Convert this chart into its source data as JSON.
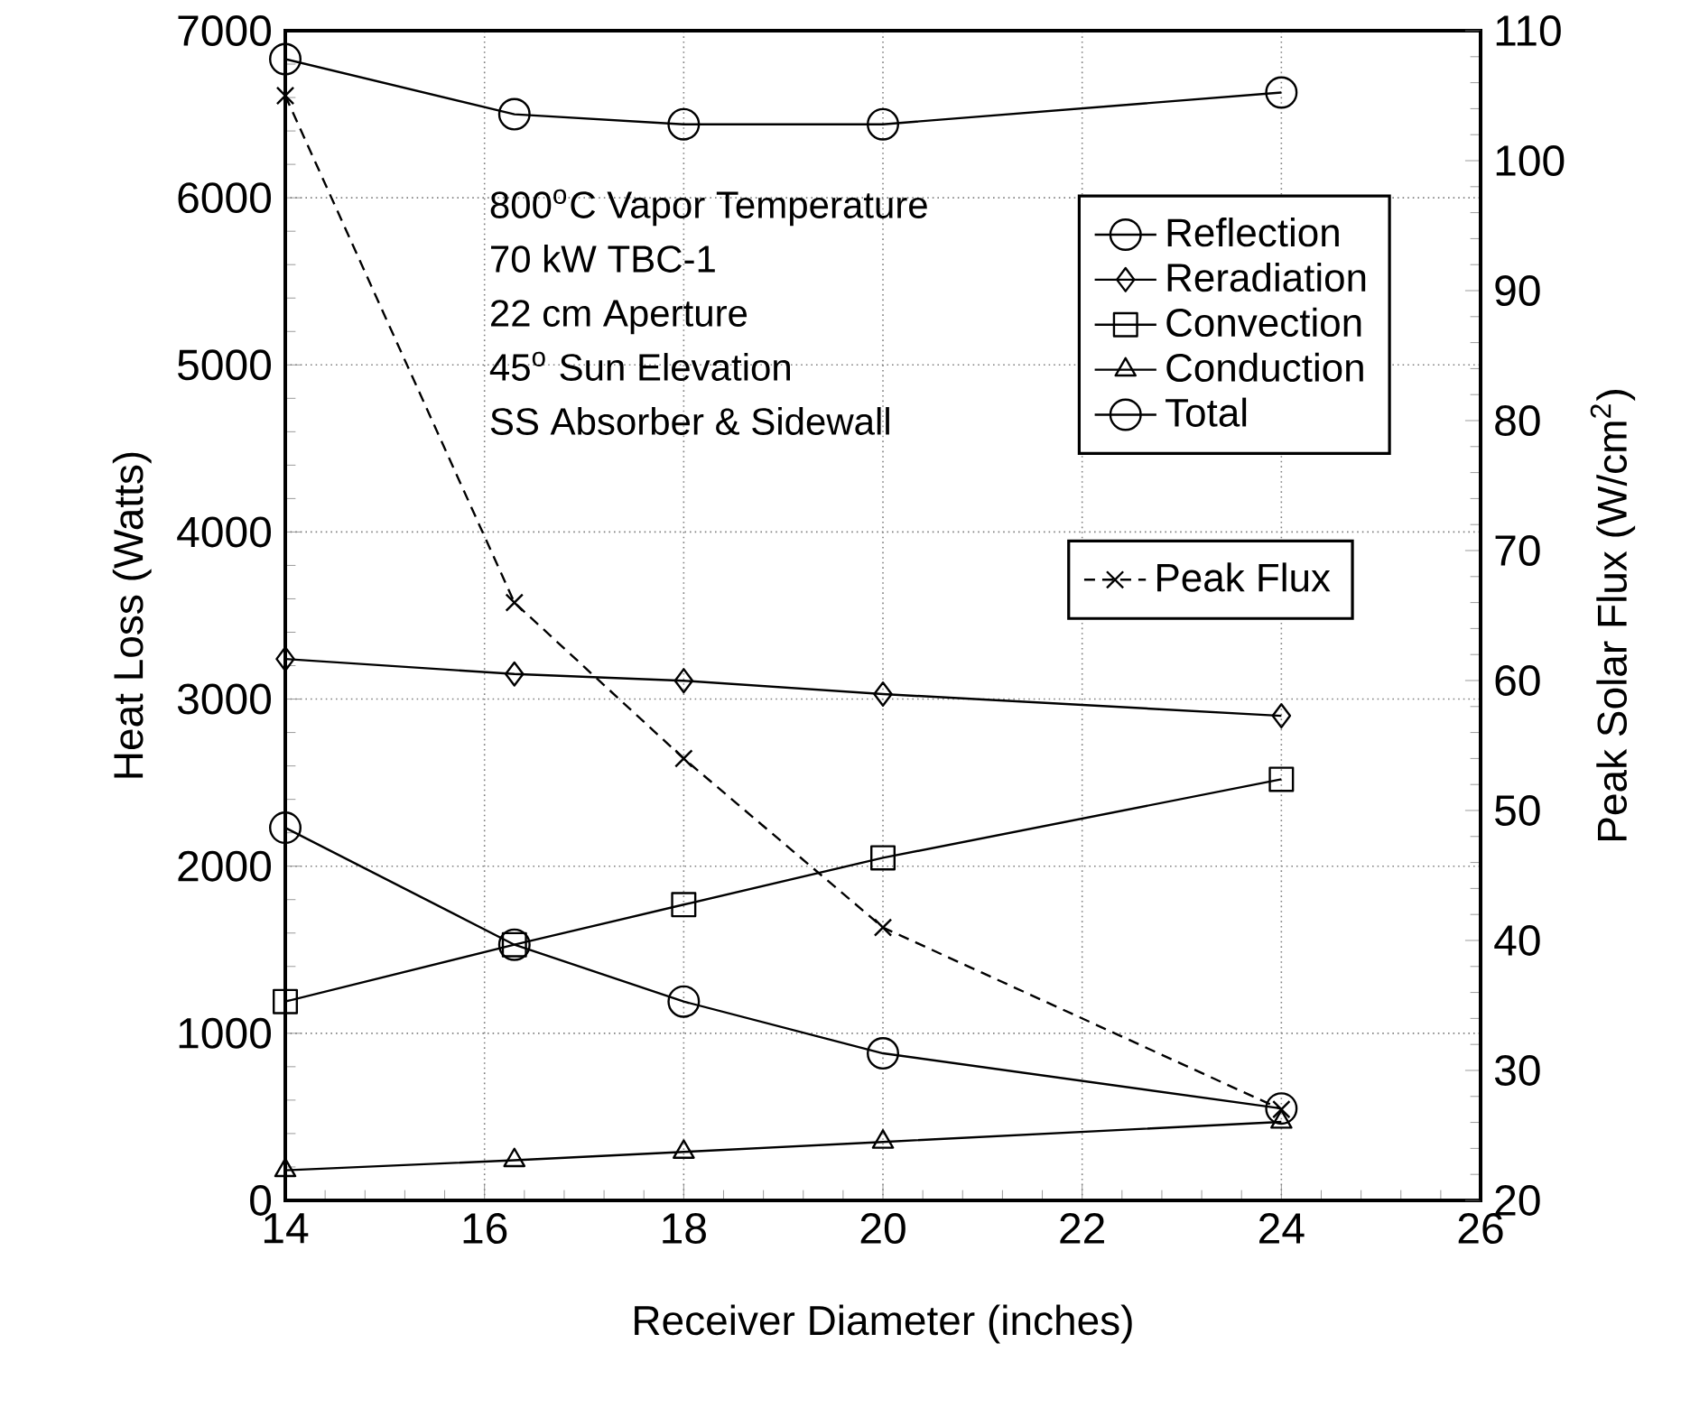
{
  "chart_data": {
    "type": "line",
    "xlabel": "Receiver Diameter (inches)",
    "ylabel": "Heat Loss (Watts)",
    "y2label": "Peak Solar Flux (W/cm$^{2}$)",
    "annotations": [
      "800$^{o}$C Vapor Temperature",
      "70 kW TBC-1",
      "22 cm Aperture",
      "45$^{o}$ Sun Elevation",
      "SS Absorber & Sidewall"
    ],
    "x": [
      14,
      16.3,
      18,
      20,
      24
    ],
    "series": [
      {
        "name": "Reflection",
        "color": "#000000",
        "marker": "circle",
        "values": [
          2230,
          1530,
          1190,
          880,
          550
        ]
      },
      {
        "name": "Reradiation",
        "color": "#000000",
        "marker": "diamond",
        "values": [
          3240,
          3150,
          3110,
          3030,
          2900
        ]
      },
      {
        "name": "Convection",
        "color": "#000000",
        "marker": "square",
        "values": [
          1190,
          1530,
          1770,
          2050,
          2520
        ]
      },
      {
        "name": "Conduction",
        "color": "#000000",
        "marker": "triangle",
        "values": [
          180,
          240,
          290,
          350,
          470
        ]
      },
      {
        "name": "Total",
        "color": "#000000",
        "marker": "circle",
        "values": [
          6830,
          6500,
          6440,
          6440,
          6630
        ]
      },
      {
        "name": "Peak Flux",
        "color": "#000000",
        "marker": "cross",
        "line_style": "dashed",
        "axis": "y2",
        "values": [
          105,
          66,
          54,
          41,
          27
        ]
      }
    ],
    "xlim": [
      14,
      26
    ],
    "xticks": [
      14,
      16,
      18,
      20,
      22,
      24,
      26
    ],
    "ylim": [
      0,
      7000
    ],
    "yticks": [
      0,
      1000,
      2000,
      3000,
      4000,
      5000,
      6000,
      7000
    ],
    "y2lim": [
      20,
      110
    ],
    "y2ticks": [
      20,
      30,
      40,
      50,
      60,
      70,
      80,
      90,
      100,
      110
    ],
    "grid": true,
    "legend": "top right",
    "line_style": "solid"
  }
}
